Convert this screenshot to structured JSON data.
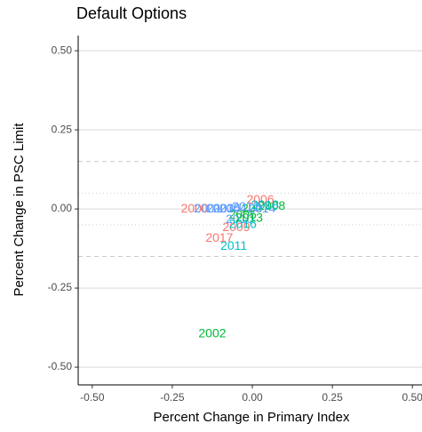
{
  "chart_data": {
    "type": "scatter",
    "title": "Default Options",
    "x_label": "Percent Change in Primary Index",
    "y_label": "Percent Change in PSC Limit",
    "xlim": [
      -0.544,
      0.53
    ],
    "ylim": [
      -0.556,
      0.548
    ],
    "xticks": [
      {
        "value": -0.5,
        "label": "-0.50"
      },
      -0.25,
      {
        "value": 0,
        "label": "0.00"
      },
      0.25,
      {
        "value": 0.5,
        "label": "0.50"
      }
    ],
    "yticks": [
      {
        "value": -0.5,
        "label": "-0.50"
      },
      -0.25,
      {
        "value": 0,
        "label": "0.00"
      },
      0.25,
      {
        "value": 0.5,
        "label": "0.50"
      }
    ],
    "grid": true,
    "reference_lines": [
      {
        "value": 0.15,
        "style": "dashed"
      },
      {
        "value": -0.15,
        "style": "dashed"
      },
      {
        "value": 0.05,
        "style": "dotted"
      },
      {
        "value": -0.05,
        "style": "dotted"
      }
    ],
    "labels": [
      "2000",
      "2001",
      "2002",
      "2003",
      "2004",
      "2005",
      "2006",
      "2007",
      "2008",
      "2009",
      "2010",
      "2011",
      "2012",
      "2013",
      "2014",
      "2015",
      "2016",
      "2017",
      "2018"
    ],
    "x": [
      -0.18,
      -0.14,
      -0.125,
      -0.1,
      -0.06,
      -0.03,
      0.025,
      0.01,
      0.06,
      -0.05,
      -0.04,
      -0.058,
      -0.02,
      -0.01,
      0.03,
      -0.08,
      -0.03,
      -0.103,
      0.04
    ],
    "y": [
      0.0,
      0.0,
      -0.396,
      0.0,
      0.0,
      -0.02,
      0.028,
      0.0,
      0.008,
      -0.06,
      -0.035,
      -0.118,
      0.005,
      -0.03,
      0.0,
      0.0,
      -0.05,
      -0.093,
      0.01
    ],
    "colors": [
      "#F8766D",
      "#619CFF",
      "#00BA38",
      "#619CFF",
      "#619CFF",
      "#00BA38",
      "#F8766D",
      "#00BA38",
      "#00BA38",
      "#F8766D",
      "#619CFF",
      "#00BFC4",
      "#619CFF",
      "#00BA38",
      "#619CFF",
      "#619CFF",
      "#00BFC4",
      "#F8766D",
      "#00BFC4"
    ]
  }
}
